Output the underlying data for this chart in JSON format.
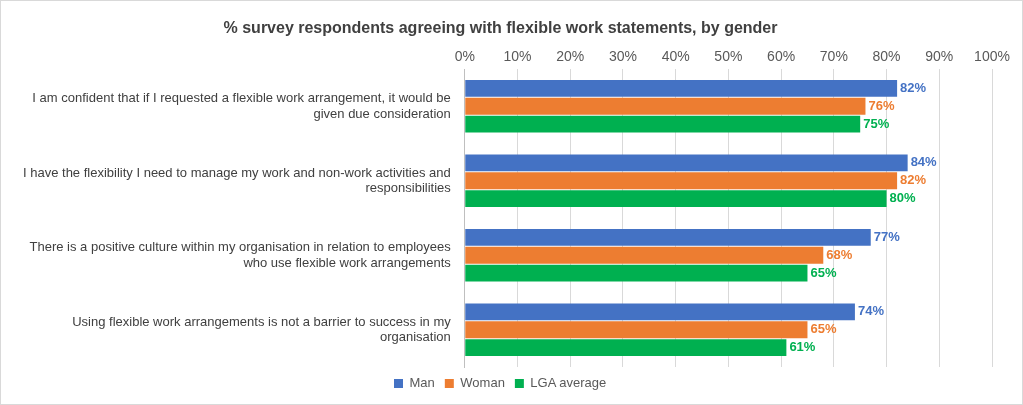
{
  "chart_data": {
    "type": "bar",
    "orientation": "horizontal",
    "title": "% survey respondents agreeing with flexible work statements, by gender",
    "categories": [
      "I am confident that if I requested a flexible work arrangement, it would be given due consideration",
      "I have the flexibility I need to manage my work and non-work activities and responsibilities",
      "There is a positive culture within my organisation in relation to employees who use flexible work arrangements",
      "Using flexible work arrangements is not a barrier to success in my organisation"
    ],
    "series": [
      {
        "name": "Man",
        "color": "#4472c4",
        "values": [
          82,
          84,
          77,
          74
        ],
        "value_labels": [
          "82%",
          "84%",
          "77%",
          "74%"
        ]
      },
      {
        "name": "Woman",
        "color": "#ed7d31",
        "values": [
          76,
          82,
          68,
          65
        ],
        "value_labels": [
          "76%",
          "82%",
          "68%",
          "65%"
        ]
      },
      {
        "name": "LGA average",
        "color": "#00b050",
        "values": [
          75,
          80,
          65,
          61
        ],
        "value_labels": [
          "75%",
          "80%",
          "65%",
          "61%"
        ]
      }
    ],
    "xlim": [
      0,
      100
    ],
    "xticks": [
      {
        "value": 0,
        "label": "0%"
      },
      {
        "value": 10,
        "label": "10%"
      },
      {
        "value": 20,
        "label": "20%"
      },
      {
        "value": 30,
        "label": "30%"
      },
      {
        "value": 40,
        "label": "40%"
      },
      {
        "value": 50,
        "label": "50%"
      },
      {
        "value": 60,
        "label": "60%"
      },
      {
        "value": 70,
        "label": "70%"
      },
      {
        "value": 80,
        "label": "80%"
      },
      {
        "value": 90,
        "label": "90%"
      },
      {
        "value": 100,
        "label": "100%"
      }
    ],
    "grid": "x",
    "legend": "bottom"
  }
}
